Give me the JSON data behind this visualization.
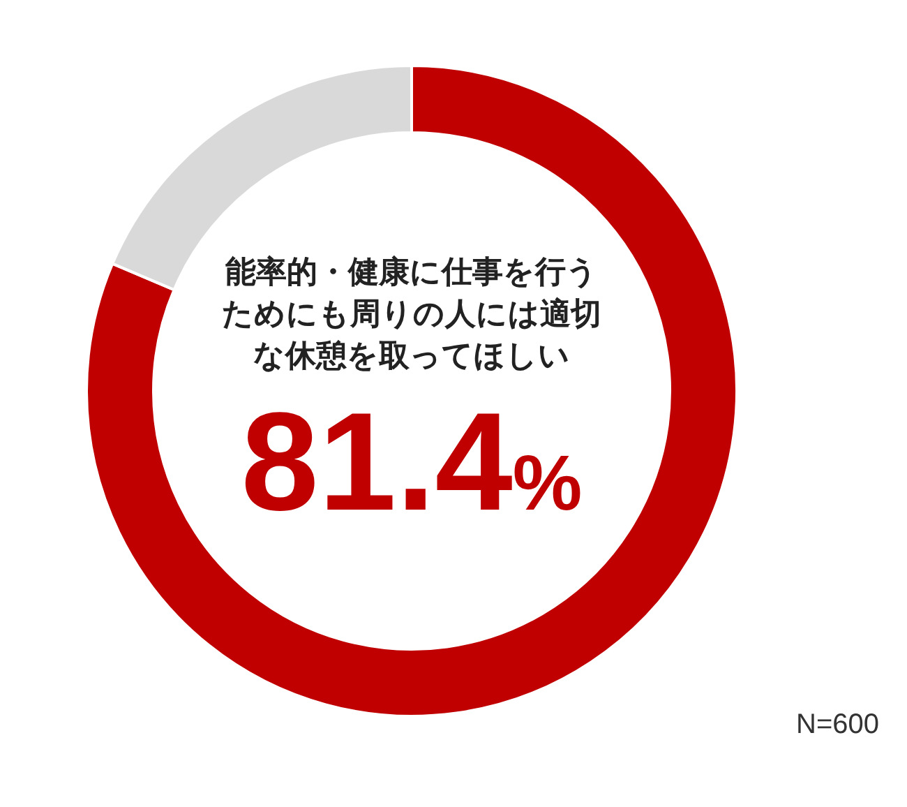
{
  "chart_data": {
    "type": "donut",
    "title": "能率的・健康に仕事を行うためにも周りの人には適切な休憩を取ってほしい",
    "categories": [
      null,
      null
    ],
    "values": [
      81.4,
      18.6
    ],
    "colors": [
      "#c00000",
      "#d9d9d9"
    ],
    "value_labels": [
      "81.4%",
      null
    ],
    "annotations": [
      "N=600"
    ]
  }
}
